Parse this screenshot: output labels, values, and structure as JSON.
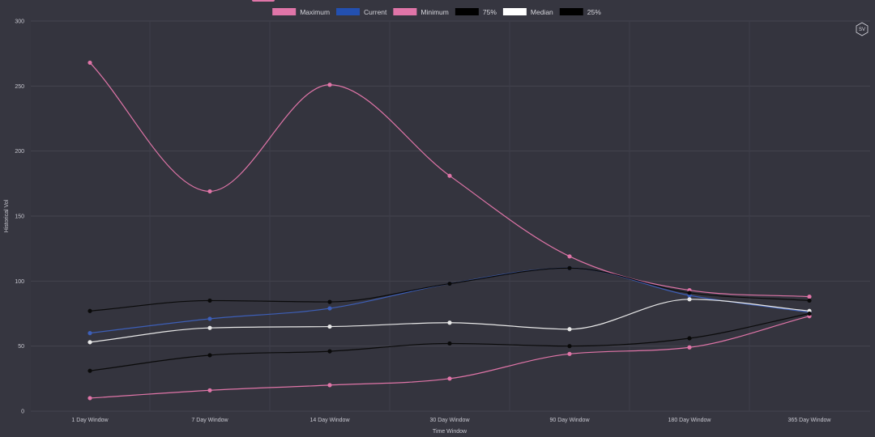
{
  "chart_data": {
    "type": "line",
    "title": "",
    "xlabel": "Time Window",
    "ylabel": "Historical Vol",
    "categories": [
      "1 Day Window",
      "7 Day Window",
      "14 Day Window",
      "30 Day Window",
      "90 Day Window",
      "180 Day Window",
      "365 Day Window"
    ],
    "ylim": [
      0,
      300
    ],
    "yticks": [
      0,
      50,
      100,
      150,
      200,
      250,
      300
    ],
    "grid": true,
    "legend_position": "top-center",
    "series": [
      {
        "name": "Maximum",
        "color": "#e075a8",
        "legend_color": "#e075a8",
        "values": [
          268,
          169,
          251,
          181,
          119,
          93,
          88
        ]
      },
      {
        "name": "Current",
        "color": "#3d5fb8",
        "legend_color": "#2350b0",
        "values": [
          60,
          71,
          79,
          98,
          110,
          89,
          76
        ]
      },
      {
        "name": "Minimum",
        "color": "#e075a8",
        "legend_color": "#e075a8",
        "values": [
          10,
          16,
          20,
          25,
          44,
          49,
          73
        ]
      },
      {
        "name": "75%",
        "color": "#0a0a0a",
        "legend_color": "#000000",
        "values": [
          77,
          85,
          84,
          98,
          110,
          91,
          85
        ]
      },
      {
        "name": "Median",
        "color": "#e8e8e8",
        "legend_color": "#ffffff",
        "values": [
          53,
          64,
          65,
          68,
          63,
          86,
          77
        ]
      },
      {
        "name": "25%",
        "color": "#0a0a0a",
        "legend_color": "#000000",
        "values": [
          31,
          43,
          46,
          52,
          50,
          56,
          75
        ]
      }
    ]
  },
  "watermark": {
    "text": "SV",
    "icon": "hexagon-logo-icon"
  }
}
